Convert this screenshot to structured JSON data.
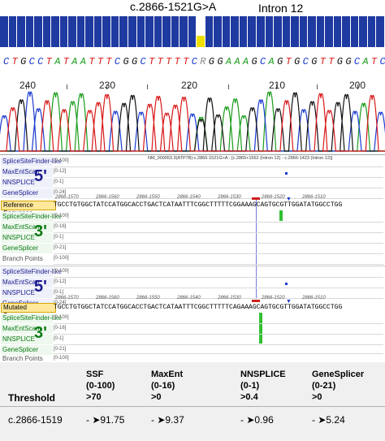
{
  "header": {
    "mutation_label": "c.2866-1521G>A",
    "intron_label": "Intron 12"
  },
  "sequence": {
    "bases": "C T G C C T A T A A T T T C G G C T T T T T C R G G A A A G C A G T G C G T T G G C A T C"
  },
  "positions": [
    "240",
    "230",
    "220",
    "210",
    "200"
  ],
  "viewer": {
    "title": "NM_000053.3(ATP7B):c.2866-1521G>A - [c.2865+1562 (Intron 12) - c.2866-1423 (Intron 12)]",
    "ref_label": "Reference Sequence",
    "mut_label": "Mutated Sequence",
    "ref_seq": "TGCCTGTGGCTATCCATGGCACCTGACTCATAATTTCGGCTTTTTCGGAAAGCAGTGCGTTGGATATGGCCTGG",
    "mut_seq": "TGCCTGTGGCTATCCATGGCACCTGACTCATAATTTCGGCTTTTTCAGAAAGCAGTGCGTTGGATATGGCCTGG",
    "coords": [
      "2866-1570",
      "2866-1560",
      "2866-1550",
      "2866-1540",
      "2866-1530",
      "2866-1520",
      "2866-1510"
    ],
    "five_prime": "5'",
    "three_prime": "3'",
    "tools": {
      "ssf": "SpliceSiteFinder-like",
      "maxent": "MaxEntScan",
      "nnsplice": "NNSPLICE",
      "genesplicer": "GeneSplicer",
      "branch": "Branch Points"
    },
    "ranges": {
      "ssf": "[0-100]",
      "maxent": "[0-12]",
      "maxent3": "[0-16]",
      "nnsplice": "[0-1]",
      "genesplicer5": "[0-24]",
      "genesplicer3": "[0-21]",
      "branch": "[0-100]"
    }
  },
  "table": {
    "threshold_label": "Threshold",
    "columns": [
      {
        "name": "SSF",
        "range": "(0-100)",
        "threshold": ">70"
      },
      {
        "name": "MaxEnt",
        "range": "(0-16)",
        "threshold": ">0"
      },
      {
        "name": "NNSPLICE",
        "range": "(0-1)",
        "threshold": ">0.4"
      },
      {
        "name": "GeneSplicer",
        "range": "(0-21)",
        "threshold": ">0"
      }
    ],
    "row": {
      "label": "c.2866-1519",
      "values": [
        "- ➤91.75",
        "- ➤9.37",
        "- ➤0.96",
        "- ➤5.24"
      ]
    }
  },
  "colors": {
    "quality_bar": "#1f3aa0",
    "highlight_bar": "#f0e000",
    "base_A": "#1a9c1a",
    "base_C": "#1a3ad0",
    "base_G": "#111111",
    "base_T": "#d81818"
  }
}
